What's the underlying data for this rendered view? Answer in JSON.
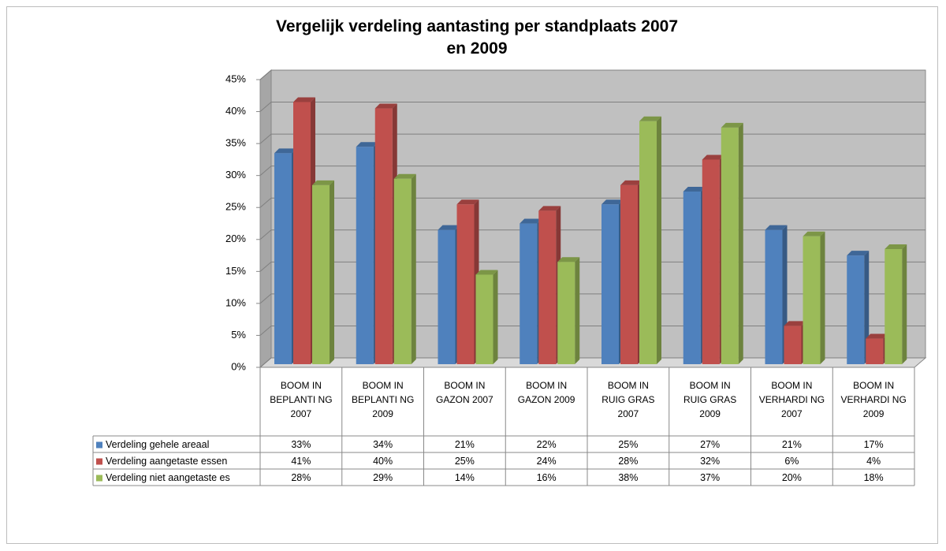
{
  "chart_data": {
    "type": "bar3d",
    "title": "Vergelijk verdeling aantasting per standplaats 2007 en 2009",
    "categories": [
      "BOOM IN BEPLANTI NG 2007",
      "BOOM IN BEPLANTI NG 2009",
      "BOOM IN GAZON 2007",
      "BOOM IN GAZON 2009",
      "BOOM IN RUIG GRAS 2007",
      "BOOM IN RUIG GRAS 2009",
      "BOOM IN VERHARDI NG 2007",
      "BOOM IN VERHARDI NG 2009"
    ],
    "series": [
      {
        "name": "Verdeling gehele areaal",
        "color": "#4f81bd",
        "values": [
          33,
          34,
          21,
          22,
          25,
          27,
          21,
          17
        ],
        "value_labels": [
          "33%",
          "34%",
          "21%",
          "22%",
          "25%",
          "27%",
          "21%",
          "17%"
        ]
      },
      {
        "name": "Verdeling aangetaste essen",
        "color": "#c0504d",
        "values": [
          41,
          40,
          25,
          24,
          28,
          32,
          6,
          4
        ],
        "value_labels": [
          "41%",
          "40%",
          "25%",
          "24%",
          "28%",
          "32%",
          "6%",
          "4%"
        ]
      },
      {
        "name": "Verdeling niet aangetaste es",
        "color": "#9bbb59",
        "values": [
          28,
          29,
          14,
          16,
          38,
          37,
          20,
          18
        ],
        "value_labels": [
          "28%",
          "29%",
          "14%",
          "16%",
          "38%",
          "37%",
          "20%",
          "18%"
        ]
      }
    ],
    "ylim": [
      0,
      45
    ],
    "yticks": [
      {
        "value": 0,
        "label": "0%"
      },
      {
        "value": 5,
        "label": "5%"
      },
      {
        "value": 10,
        "label": "10%"
      },
      {
        "value": 15,
        "label": "15%"
      },
      {
        "value": 20,
        "label": "20%"
      },
      {
        "value": 25,
        "label": "25%"
      },
      {
        "value": 30,
        "label": "30%"
      },
      {
        "value": 35,
        "label": "35%"
      },
      {
        "value": 40,
        "label": "40%"
      },
      {
        "value": 45,
        "label": "45%"
      }
    ],
    "grid": true
  }
}
